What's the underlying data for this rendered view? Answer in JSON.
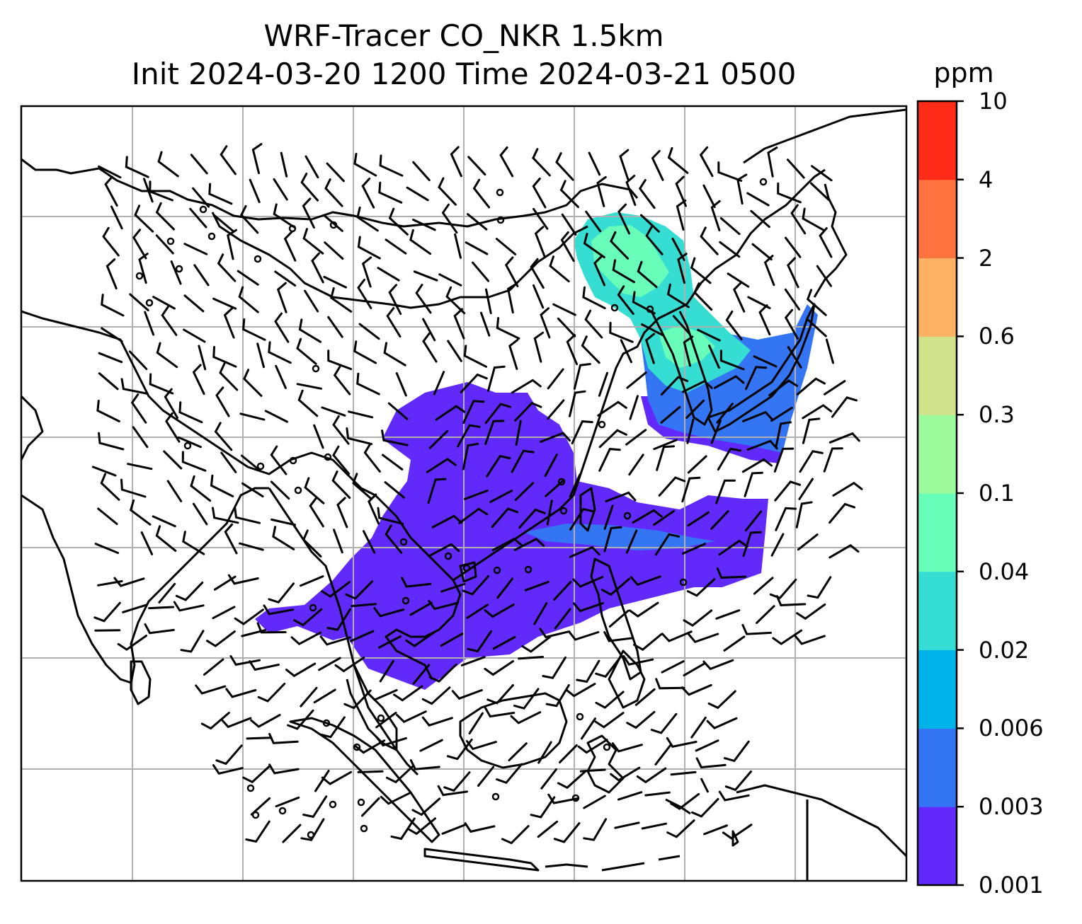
{
  "title": {
    "line1": "WRF-Tracer CO_NKR 1.5km",
    "line2": "Init 2024-03-20 1200 Time 2024-03-21 0500"
  },
  "colorbar": {
    "unit": "ppm",
    "levels": [
      "0.001",
      "0.003",
      "0.006",
      "0.02",
      "0.04",
      "0.1",
      "0.3",
      "0.6",
      "2",
      "4",
      "10"
    ],
    "colors": [
      "#6229fb",
      "#3475f4",
      "#00b3e9",
      "#35ddd3",
      "#68fdb9",
      "#9cfa9b",
      "#d1e28a",
      "#fdb263",
      "#fe7340",
      "#fe2b17"
    ]
  },
  "map": {
    "gridlines": true,
    "coastline_color": "#000000",
    "grid_color": "#b0b0b0",
    "symbols": [
      "wind-barbs",
      "calm-circles",
      "coastlines",
      "tracer-plume"
    ]
  }
}
